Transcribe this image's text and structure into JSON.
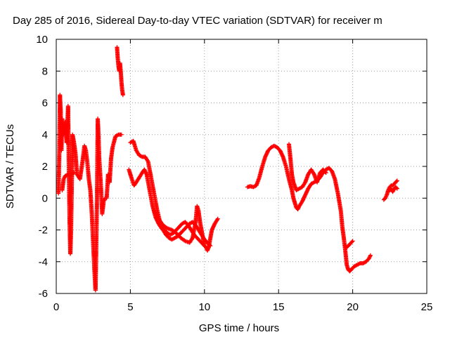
{
  "chart_data": {
    "type": "scatter",
    "title": "Day 285 of 2016, Sidereal Day-to-day VTEC variation (SDTVAR) for receiver m",
    "xlabel": "GPS time / hours",
    "ylabel": "SDTVAR / TECUs",
    "xlim": [
      0,
      25
    ],
    "ylim": [
      -6,
      10
    ],
    "xticks": [
      "0",
      "5",
      "10",
      "15",
      "20",
      "25"
    ],
    "yticks": [
      "-6",
      "-4",
      "-2",
      "0",
      "2",
      "4",
      "6",
      "8",
      "10"
    ],
    "grid": true,
    "marker": "plus",
    "color": "#ff0000",
    "series": [
      {
        "name": "SDTVAR",
        "segments": [
          [
            [
              0.15,
              0.3
            ],
            [
              0.2,
              2.5
            ],
            [
              0.25,
              6.5
            ],
            [
              0.3,
              5.5
            ],
            [
              0.35,
              3.0
            ],
            [
              0.4,
              5.0
            ],
            [
              0.5,
              4.0
            ],
            [
              0.6,
              4.8
            ],
            [
              0.7,
              3.5
            ],
            [
              0.8,
              5.8
            ],
            [
              0.85,
              2.0
            ],
            [
              0.9,
              -1.5
            ],
            [
              0.95,
              -3.5
            ],
            [
              1.0,
              -2.0
            ],
            [
              1.1,
              4.0
            ],
            [
              1.2,
              3.5
            ],
            [
              1.3,
              2.8
            ],
            [
              1.4,
              1.5
            ],
            [
              1.6,
              1.2
            ],
            [
              1.8,
              2.5
            ],
            [
              1.9,
              3.3
            ],
            [
              2.0,
              3.0
            ],
            [
              2.1,
              2.2
            ],
            [
              2.2,
              1.2
            ],
            [
              2.3,
              0.5
            ],
            [
              2.4,
              -1.0
            ],
            [
              2.5,
              -3.0
            ],
            [
              2.6,
              -5.0
            ],
            [
              2.65,
              -5.8
            ],
            [
              2.7,
              -3.0
            ],
            [
              2.75,
              0.0
            ],
            [
              2.8,
              5.0
            ],
            [
              2.85,
              4.0
            ],
            [
              2.9,
              2.5
            ],
            [
              3.0,
              1.0
            ],
            [
              3.1,
              -1.0
            ],
            [
              3.2,
              -0.2
            ],
            [
              3.3,
              0.0
            ],
            [
              3.4,
              0.0
            ],
            [
              3.5,
              1.5
            ],
            [
              3.6,
              1.0
            ],
            [
              3.7,
              2.5
            ],
            [
              3.8,
              3.2
            ],
            [
              4.0,
              3.9
            ],
            [
              4.2,
              4.0
            ],
            [
              4.4,
              4.0
            ]
          ],
          [
            [
              4.1,
              9.5
            ],
            [
              4.15,
              8.8
            ],
            [
              4.2,
              8.3
            ],
            [
              4.25,
              8.0
            ],
            [
              4.3,
              8.5
            ],
            [
              4.35,
              8.0
            ],
            [
              4.4,
              7.3
            ],
            [
              4.45,
              6.8
            ],
            [
              4.5,
              6.5
            ]
          ],
          [
            [
              0.4,
              0.5
            ],
            [
              0.5,
              1.2
            ],
            [
              0.6,
              1.4
            ],
            [
              0.8,
              1.5
            ],
            [
              1.0,
              1.5
            ],
            [
              1.2,
              1.6
            ]
          ],
          [
            [
              4.9,
              1.8
            ],
            [
              5.0,
              1.5
            ],
            [
              5.1,
              1.2
            ],
            [
              5.25,
              0.8
            ],
            [
              5.4,
              1.0
            ],
            [
              5.6,
              1.3
            ],
            [
              5.8,
              1.6
            ],
            [
              5.95,
              1.8
            ],
            [
              6.1,
              1.5
            ],
            [
              6.3,
              0.5
            ],
            [
              6.5,
              -0.5
            ],
            [
              6.7,
              -1.2
            ],
            [
              6.9,
              -1.6
            ],
            [
              7.1,
              -1.9
            ],
            [
              7.3,
              -2.0
            ],
            [
              7.5,
              -2.2
            ],
            [
              7.7,
              -2.3
            ],
            [
              7.9,
              -2.2
            ],
            [
              8.1,
              -2.0
            ],
            [
              8.3,
              -1.8
            ],
            [
              8.5,
              -1.6
            ],
            [
              8.7,
              -1.5
            ],
            [
              8.9,
              -1.7
            ],
            [
              9.1,
              -2.0
            ],
            [
              9.3,
              -2.3
            ],
            [
              9.5,
              -2.5
            ],
            [
              9.7,
              -2.7
            ],
            [
              9.9,
              -2.9
            ],
            [
              10.1,
              -3.1
            ],
            [
              10.2,
              -3.3
            ],
            [
              10.3,
              -3.0
            ],
            [
              10.4,
              -2.5
            ],
            [
              10.5,
              -2.0
            ],
            [
              10.7,
              -1.6
            ],
            [
              10.9,
              -1.3
            ]
          ],
          [
            [
              5.0,
              3.5
            ],
            [
              5.2,
              3.6
            ],
            [
              5.4,
              3.0
            ],
            [
              5.6,
              2.7
            ],
            [
              5.8,
              2.6
            ],
            [
              6.0,
              2.6
            ],
            [
              6.2,
              2.3
            ],
            [
              6.4,
              1.3
            ],
            [
              6.6,
              0.3
            ],
            [
              6.8,
              -0.7
            ],
            [
              7.0,
              -1.5
            ],
            [
              7.2,
              -2.0
            ],
            [
              7.4,
              -2.3
            ],
            [
              7.6,
              -2.5
            ],
            [
              7.8,
              -2.6
            ],
            [
              8.0,
              -2.5
            ],
            [
              8.2,
              -2.4
            ],
            [
              8.4,
              -2.2
            ],
            [
              8.6,
              -2.0
            ],
            [
              8.8,
              -1.8
            ],
            [
              9.0,
              -1.6
            ],
            [
              9.2,
              -1.5
            ],
            [
              9.4,
              -1.7
            ],
            [
              9.6,
              -2.0
            ],
            [
              9.8,
              -2.3
            ],
            [
              10.0,
              -2.6
            ],
            [
              10.2,
              -2.8
            ],
            [
              10.4,
              -3.0
            ]
          ],
          [
            [
              6.6,
              -0.8
            ],
            [
              6.9,
              -1.3
            ],
            [
              7.2,
              -1.7
            ],
            [
              7.5,
              -1.9
            ],
            [
              7.8,
              -2.0
            ],
            [
              8.1,
              -2.2
            ],
            [
              8.4,
              -2.5
            ],
            [
              8.7,
              -2.7
            ],
            [
              9.0,
              -2.8
            ],
            [
              9.2,
              -2.5
            ],
            [
              9.4,
              -1.5
            ],
            [
              9.5,
              -0.5
            ],
            [
              9.6,
              -0.8
            ],
            [
              9.7,
              -1.5
            ],
            [
              9.8,
              -2.0
            ],
            [
              9.9,
              -2.5
            ],
            [
              10.0,
              -2.9
            ]
          ],
          [
            [
              12.9,
              0.7
            ],
            [
              13.1,
              0.75
            ],
            [
              13.3,
              0.7
            ],
            [
              13.5,
              0.8
            ],
            [
              13.7,
              1.3
            ],
            [
              13.9,
              2.0
            ],
            [
              14.1,
              2.6
            ],
            [
              14.3,
              3.0
            ],
            [
              14.5,
              3.2
            ],
            [
              14.7,
              3.3
            ],
            [
              14.9,
              3.2
            ],
            [
              15.1,
              3.0
            ],
            [
              15.3,
              2.6
            ],
            [
              15.5,
              2.0
            ],
            [
              15.7,
              1.2
            ],
            [
              15.9,
              0.5
            ],
            [
              16.0,
              0.0
            ],
            [
              16.1,
              -0.3
            ],
            [
              16.2,
              -0.6
            ],
            [
              16.3,
              -0.7
            ],
            [
              16.4,
              -0.5
            ],
            [
              16.6,
              -0.2
            ],
            [
              16.8,
              0.2
            ],
            [
              17.0,
              0.6
            ],
            [
              17.2,
              0.9
            ],
            [
              17.4,
              1.0
            ],
            [
              17.6,
              1.1
            ],
            [
              17.8,
              1.3
            ],
            [
              18.0,
              1.6
            ],
            [
              18.2,
              1.8
            ],
            [
              18.4,
              1.9
            ],
            [
              18.6,
              1.7
            ],
            [
              18.8,
              1.2
            ],
            [
              19.0,
              0.3
            ],
            [
              19.2,
              -0.8
            ],
            [
              19.3,
              -1.8
            ],
            [
              19.4,
              -2.5
            ],
            [
              19.5,
              -3.3
            ],
            [
              19.6,
              -4.2
            ],
            [
              19.7,
              -4.5
            ],
            [
              19.8,
              -4.6
            ],
            [
              19.9,
              -4.5
            ],
            [
              20.1,
              -4.3
            ],
            [
              20.3,
              -4.2
            ],
            [
              20.5,
              -4.1
            ],
            [
              20.7,
              -4.1
            ],
            [
              20.9,
              -4.0
            ],
            [
              21.1,
              -3.8
            ],
            [
              21.2,
              -3.6
            ]
          ],
          [
            [
              15.7,
              3.4
            ],
            [
              15.8,
              2.5
            ],
            [
              15.9,
              1.5
            ],
            [
              16.0,
              1.0
            ],
            [
              16.2,
              0.5
            ],
            [
              16.4,
              0.6
            ],
            [
              16.6,
              0.7
            ],
            [
              16.8,
              1.0
            ],
            [
              17.0,
              1.5
            ],
            [
              17.2,
              1.8
            ],
            [
              17.4,
              1.5
            ],
            [
              17.6,
              1.0
            ],
            [
              17.8,
              1.6
            ],
            [
              18.0,
              1.8
            ],
            [
              18.2,
              1.6
            ]
          ],
          [
            [
              19.5,
              -3.0
            ],
            [
              19.6,
              -3.1
            ],
            [
              19.7,
              -3.0
            ],
            [
              19.8,
              -2.9
            ],
            [
              19.9,
              -2.8
            ],
            [
              20.0,
              -2.7
            ]
          ],
          [
            [
              22.1,
              -0.1
            ],
            [
              22.2,
              0.0
            ],
            [
              22.3,
              0.2
            ],
            [
              22.4,
              0.5
            ],
            [
              22.5,
              0.7
            ],
            [
              22.6,
              0.8
            ],
            [
              22.7,
              0.8
            ],
            [
              22.8,
              0.9
            ],
            [
              22.9,
              1.0
            ],
            [
              23.0,
              1.1
            ]
          ],
          [
            [
              22.5,
              0.5
            ],
            [
              22.6,
              0.6
            ],
            [
              22.7,
              0.4
            ],
            [
              22.8,
              0.6
            ],
            [
              22.9,
              0.7
            ],
            [
              23.0,
              0.6
            ]
          ]
        ]
      }
    ]
  }
}
